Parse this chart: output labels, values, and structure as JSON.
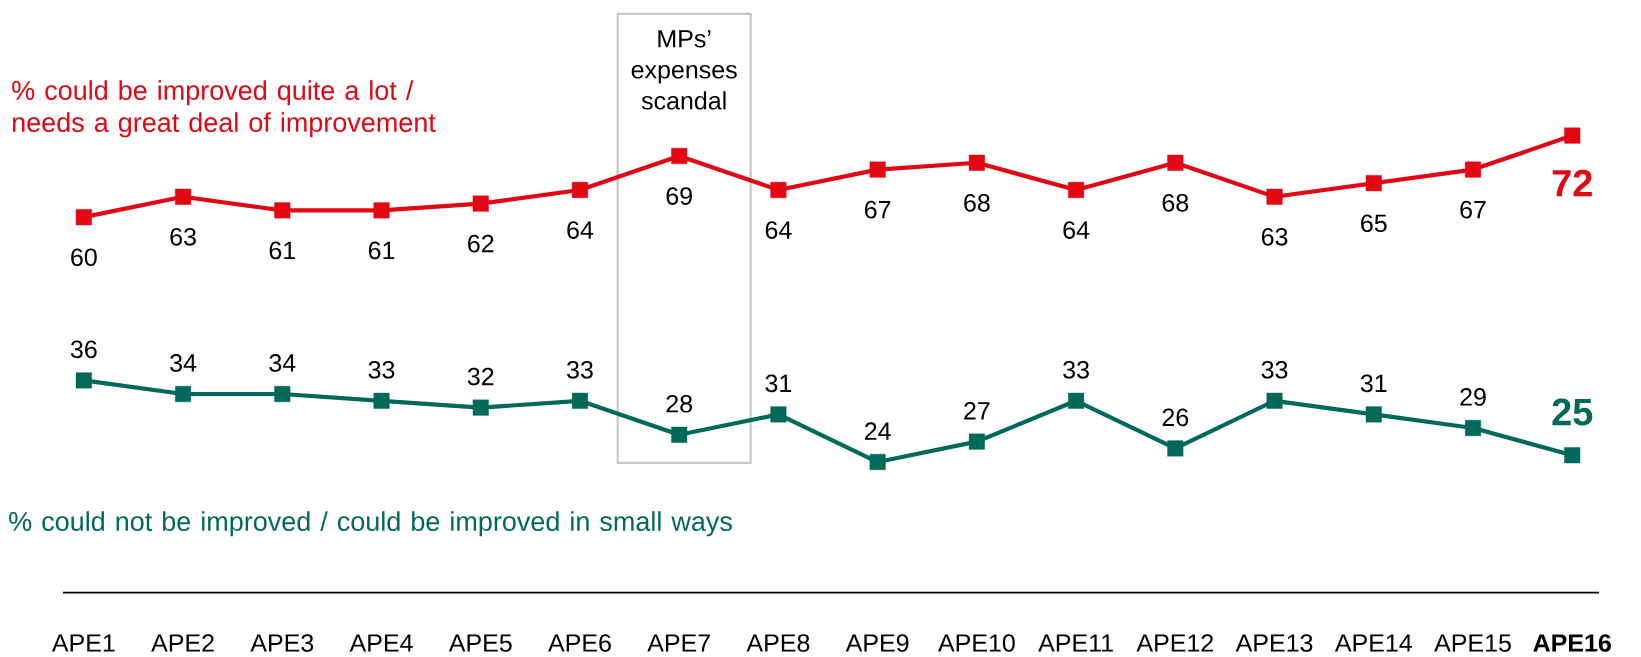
{
  "chart_data": {
    "type": "line",
    "categories": [
      "APE1",
      "APE2",
      "APE3",
      "APE4",
      "APE5",
      "APE6",
      "APE7",
      "APE8",
      "APE9",
      "APE10",
      "APE11",
      "APE12",
      "APE13",
      "APE14",
      "APE15",
      "APE16"
    ],
    "series": [
      {
        "name": "% could be improved quite a lot / needs a great deal of improvement",
        "color": "#e30613",
        "values": [
          60,
          63,
          61,
          61,
          62,
          64,
          69,
          64,
          67,
          68,
          64,
          68,
          63,
          65,
          67,
          72
        ]
      },
      {
        "name": "% could not be improved / could be improved in small ways",
        "color": "#00695a",
        "values": [
          36,
          34,
          34,
          33,
          32,
          33,
          28,
          31,
          24,
          27,
          33,
          26,
          33,
          31,
          29,
          25
        ]
      }
    ],
    "bands": [
      {
        "axis": "x",
        "from": "APE6",
        "to": "APE8",
        "label": "MPs’ expenses scandal"
      }
    ],
    "data_labels": true,
    "marker": "square",
    "line_style": "solid",
    "tick_labels": "x"
  }
}
